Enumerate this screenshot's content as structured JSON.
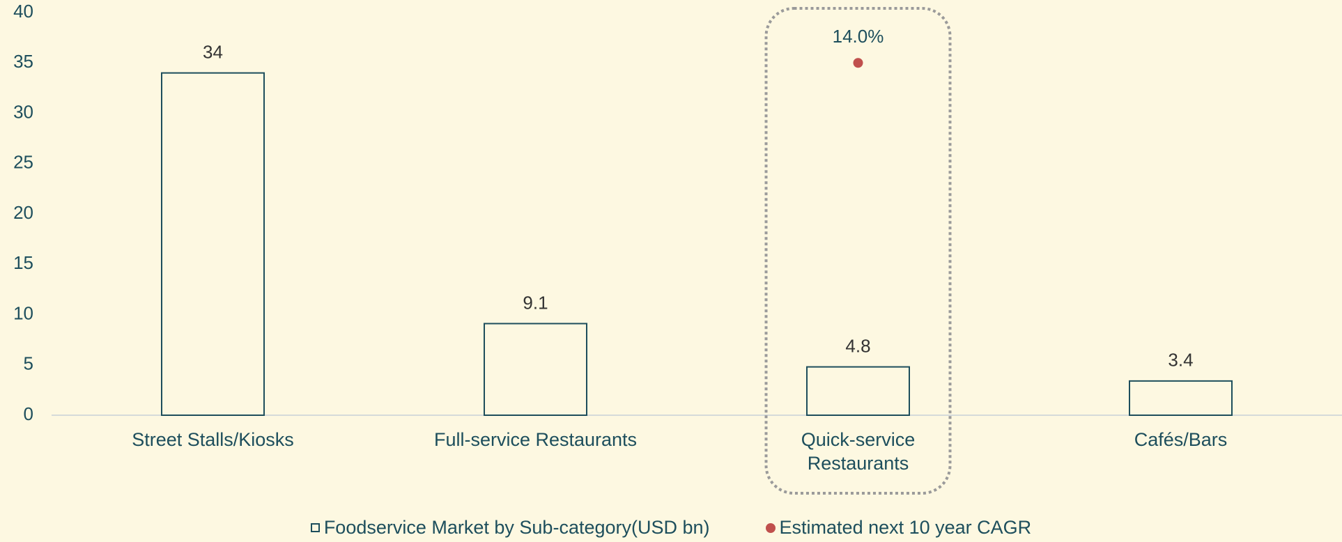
{
  "chart_data": {
    "type": "bar",
    "categories": [
      "Street Stalls/Kiosks",
      "Full-service Restaurants",
      "Quick-service Restaurants",
      "Cafés/Bars"
    ],
    "series": [
      {
        "name": "Foodservice Market by Sub-category(USD bn)",
        "color": "#1d4e5c",
        "values": [
          34,
          9.1,
          4.8,
          3.4
        ]
      },
      {
        "name": "Estimated next 10 year CAGR",
        "color": "#c0504d",
        "axis": "y2",
        "values": [
          null,
          null,
          14.0,
          null
        ],
        "value_labels": [
          null,
          null,
          "14.0%",
          null
        ]
      }
    ],
    "ylim": [
      0,
      40
    ],
    "yticks": [
      0,
      5,
      10,
      15,
      20,
      25,
      30,
      35,
      40
    ],
    "y2lim": [
      0,
      16
    ],
    "grid": false
  }
}
